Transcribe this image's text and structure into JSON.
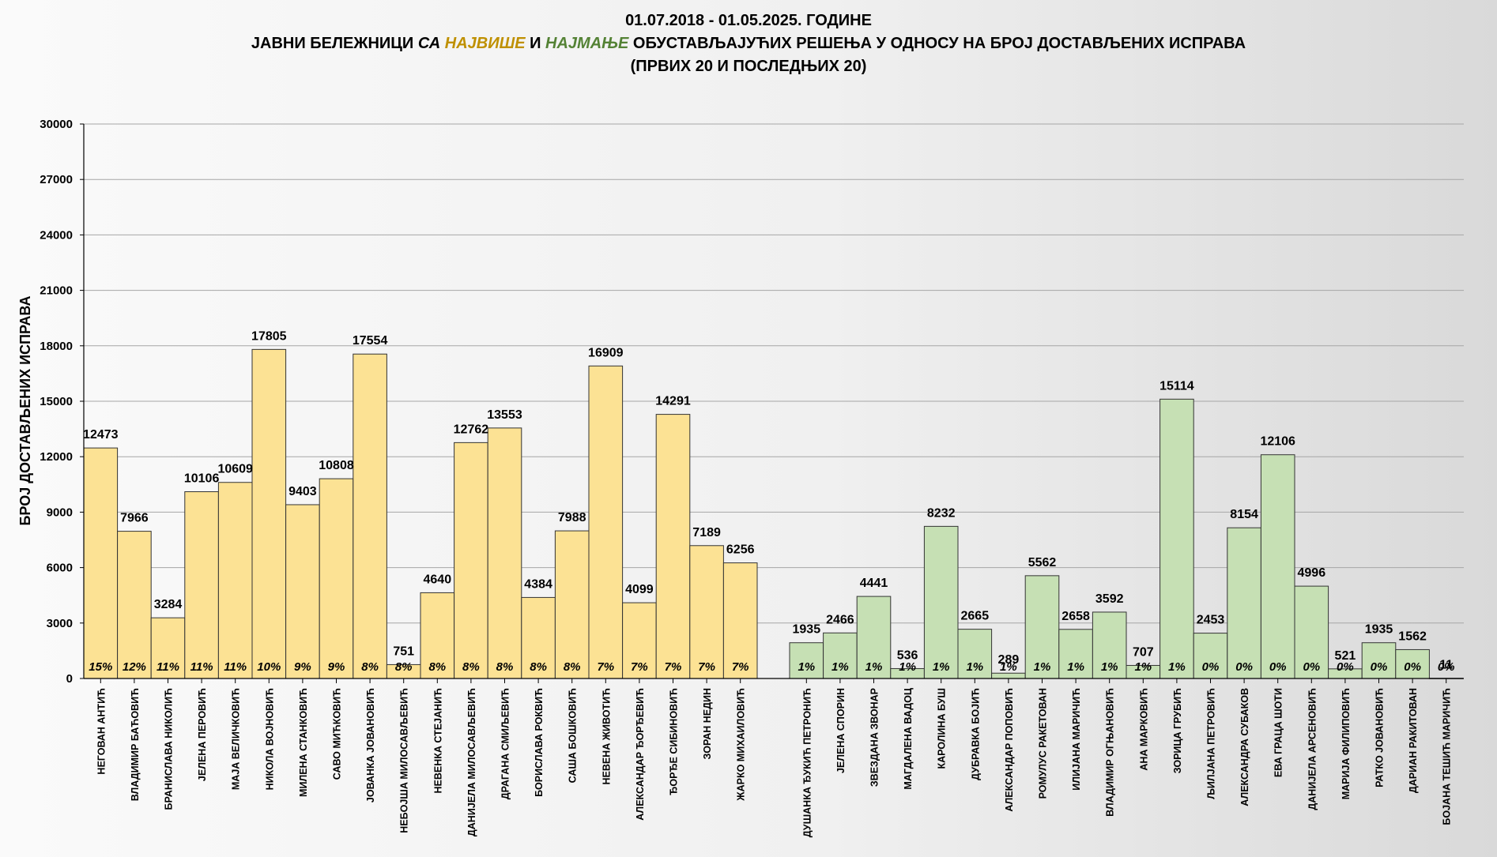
{
  "title": {
    "line1": "01.07.2018  - 01.05.2025.  ГОДИНЕ",
    "line2_a": "ЈАВНИ БЕЛЕЖНИЦИ ",
    "line2_b": "СА ",
    "line2_c": "НАЈВИШЕ",
    "line2_d": " И ",
    "line2_e": "НАЈМАЊЕ",
    "line2_f": " ОБУСТАВЉАЈУЋИХ РЕШЕЊА У ОДНОСУ  НА БРОЈ ДОСТАВЉЕНИХ ИСПРАВА",
    "line3": "(ПРВИХ 20 И ПОСЛЕДЊИХ 20)"
  },
  "colors": {
    "top_fill": "#fce294",
    "bottom_fill": "#c6e0b4",
    "bar_stroke": "#333333",
    "grid": "#a6a6a6",
    "highlight_top": "#bf9000",
    "highlight_bottom": "#548235"
  },
  "chart_data": {
    "type": "bar",
    "ylabel": "БРОЈ ДОСТАВЉЕНИХ ИСПРАВА",
    "ylim": [
      0,
      30000
    ],
    "yticks": [
      "0",
      "3000",
      "6000",
      "9000",
      "12000",
      "15000",
      "18000",
      "21000",
      "24000",
      "27000",
      "30000"
    ],
    "grid": true,
    "groups": [
      {
        "name": "top",
        "bars": [
          {
            "category": "НЕГОВАН АНТИЋ",
            "value": 12473,
            "pct": "15%"
          },
          {
            "category": "ВЛАДИМИР БАЋОВИЋ",
            "value": 7966,
            "pct": "12%"
          },
          {
            "category": "БРАНИСЛАВА  НИКОЛИЋ",
            "value": 3284,
            "pct": "11%"
          },
          {
            "category": "ЈЕЛЕНА ПЕРОВИЋ",
            "value": 10106,
            "pct": "11%"
          },
          {
            "category": "МАЈА ВЕЛИЧКОВИЋ",
            "value": 10609,
            "pct": "11%"
          },
          {
            "category": "НИКОЛА ВОЈНОВИЋ",
            "value": 17805,
            "pct": "10%"
          },
          {
            "category": "МИЛЕНА СТАНКОВИЋ",
            "value": 9403,
            "pct": "9%"
          },
          {
            "category": "САВО МИЋКОВИЋ",
            "value": 10808,
            "pct": "9%"
          },
          {
            "category": "ЈОВАНКА ЈОВАНОВИЋ",
            "value": 17554,
            "pct": "8%"
          },
          {
            "category": "НЕБОЈША МИЛОСАВЉЕВИЋ",
            "value": 751,
            "pct": "8%"
          },
          {
            "category": "НЕВЕНКА СТЕЈАНИЋ",
            "value": 4640,
            "pct": "8%"
          },
          {
            "category": "ДАНИЈЕЛА МИЛОСАВЉЕВИЋ",
            "value": 12762,
            "pct": "8%"
          },
          {
            "category": "ДРАГАНА СМИЉЕВИЋ",
            "value": 13553,
            "pct": "8%"
          },
          {
            "category": "БОРИСЛАВА  РОКВИЋ",
            "value": 4384,
            "pct": "8%"
          },
          {
            "category": "САША БОШКОВИЋ",
            "value": 7988,
            "pct": "8%"
          },
          {
            "category": "НЕВЕНА ЖИВОТИЋ",
            "value": 16909,
            "pct": "7%"
          },
          {
            "category": "АЛЕКСАНДАР  ЂОРЂЕВИЋ",
            "value": 4099,
            "pct": "7%"
          },
          {
            "category": "ЂОРЂЕ СИБИНОВИЋ",
            "value": 14291,
            "pct": "7%"
          },
          {
            "category": "ЗОРАН НЕДИН",
            "value": 7189,
            "pct": "7%"
          },
          {
            "category": "ЖАРКО МИХАИЛОВИЋ",
            "value": 6256,
            "pct": "7%"
          }
        ]
      },
      {
        "name": "bottom",
        "bars": [
          {
            "category": "ДУШАНКА  ЂУКИЋ  ПЕТРОНИЋ",
            "value": 1935,
            "pct": "1%"
          },
          {
            "category": "ЈЕЛЕНА СПОРИН",
            "value": 2466,
            "pct": "1%"
          },
          {
            "category": "ЗВЕЗДАНА ЗВОНАР",
            "value": 4441,
            "pct": "1%"
          },
          {
            "category": "МАГДАЛЕНА ВАДОЦ",
            "value": 536,
            "pct": "1%"
          },
          {
            "category": "КАРОЛИНА БУШ",
            "value": 8232,
            "pct": "1%"
          },
          {
            "category": "ДУБРАВКА БОЈИЋ",
            "value": 2665,
            "pct": "1%"
          },
          {
            "category": "АЛЕКСАНДАР  ПОПОВИЋ",
            "value": 289,
            "pct": "1%"
          },
          {
            "category": "РОМУЛУС РАКЕТОВАН",
            "value": 5562,
            "pct": "1%"
          },
          {
            "category": "ИЛИЈАНА МАРИЧИЋ",
            "value": 2658,
            "pct": "1%"
          },
          {
            "category": "ВЛАДИМИР ОГЊАНОВИЋ",
            "value": 3592,
            "pct": "1%"
          },
          {
            "category": "АНА МАРКОВИЋ",
            "value": 707,
            "pct": "1%"
          },
          {
            "category": "ЗОРИЦА ГРУБИЋ",
            "value": 15114,
            "pct": "1%"
          },
          {
            "category": "ЉИЛЈАНА ПЕТРОВИЋ",
            "value": 2453,
            "pct": "0%"
          },
          {
            "category": "АЛЕКСАНДРА  СУБАКОВ",
            "value": 8154,
            "pct": "0%"
          },
          {
            "category": "ЕВА ГРАЦА ШОТИ",
            "value": 12106,
            "pct": "0%"
          },
          {
            "category": "ДАНИЈЕЛА АРСЕНОВИЋ",
            "value": 4996,
            "pct": "0%"
          },
          {
            "category": "МАРИЈА ФИЛИПОВИЋ",
            "value": 521,
            "pct": "0%"
          },
          {
            "category": "РАТКО ЈОВАНОВИЋ",
            "value": 1935,
            "pct": "0%"
          },
          {
            "category": "ДАРИАН РАКИТОВАН",
            "value": 1562,
            "pct": "0%"
          },
          {
            "category": "БОЈАНА ТЕШИЋ МАРИЧИЋ",
            "value": 11,
            "pct": "0%"
          }
        ]
      }
    ]
  }
}
